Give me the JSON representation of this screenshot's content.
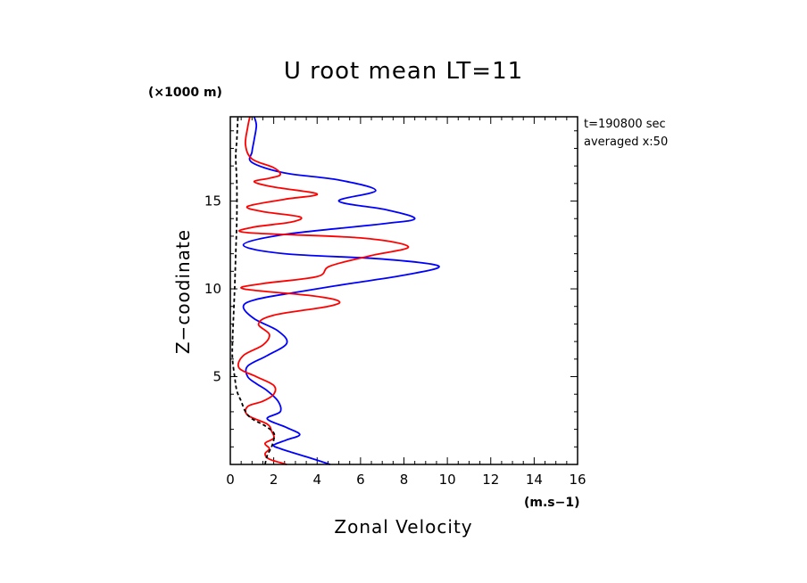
{
  "chart_data": {
    "type": "line",
    "title": "U root mean LT=11",
    "xlabel": "Zonal Velocity",
    "ylabel": "Z−coodinate",
    "x_unit": "(m.s−1)",
    "y_unit": "(×1000 m)",
    "annotation": [
      "t=190800 sec",
      "averaged  x:50"
    ],
    "xlim": [
      0,
      16
    ],
    "ylim": [
      0,
      19.8
    ],
    "x_ticks": [
      0,
      2,
      4,
      6,
      8,
      10,
      12,
      14,
      16
    ],
    "y_ticks": [
      5,
      10,
      15
    ],
    "grid": false,
    "series": [
      {
        "color": "#0000ff",
        "dash": "solid",
        "points": [
          [
            4.6,
            0.0
          ],
          [
            3.6,
            0.4
          ],
          [
            2.8,
            0.7
          ],
          [
            2.3,
            0.9
          ],
          [
            2.0,
            1.1
          ],
          [
            2.6,
            1.4
          ],
          [
            3.2,
            1.7
          ],
          [
            2.6,
            2.1
          ],
          [
            1.7,
            2.6
          ],
          [
            2.3,
            3.0
          ],
          [
            2.2,
            3.6
          ],
          [
            1.7,
            4.2
          ],
          [
            1.2,
            4.6
          ],
          [
            0.8,
            5.0
          ],
          [
            0.8,
            5.6
          ],
          [
            1.7,
            6.2
          ],
          [
            2.6,
            6.9
          ],
          [
            2.2,
            7.6
          ],
          [
            1.1,
            8.3
          ],
          [
            0.6,
            9.0
          ],
          [
            1.2,
            9.4
          ],
          [
            3.0,
            9.8
          ],
          [
            5.5,
            10.3
          ],
          [
            8.1,
            10.8
          ],
          [
            9.6,
            11.3
          ],
          [
            7.0,
            11.7
          ],
          [
            2.5,
            12.0
          ],
          [
            0.6,
            12.5
          ],
          [
            2.5,
            13.1
          ],
          [
            7.0,
            13.7
          ],
          [
            8.5,
            14.0
          ],
          [
            7.2,
            14.5
          ],
          [
            5.0,
            15.0
          ],
          [
            6.7,
            15.6
          ],
          [
            5.0,
            16.2
          ],
          [
            2.5,
            16.6
          ],
          [
            1.0,
            17.2
          ],
          [
            1.0,
            17.8
          ],
          [
            1.1,
            18.5
          ],
          [
            1.2,
            19.3
          ],
          [
            1.1,
            19.8
          ]
        ]
      },
      {
        "color": "#ff0000",
        "dash": "solid",
        "points": [
          [
            2.6,
            0.0
          ],
          [
            1.8,
            0.3
          ],
          [
            1.6,
            0.6
          ],
          [
            1.8,
            0.9
          ],
          [
            1.6,
            1.2
          ],
          [
            2.0,
            1.5
          ],
          [
            1.9,
            1.9
          ],
          [
            1.7,
            2.3
          ],
          [
            0.8,
            2.8
          ],
          [
            0.8,
            3.3
          ],
          [
            1.5,
            3.6
          ],
          [
            2.0,
            4.0
          ],
          [
            2.0,
            4.5
          ],
          [
            1.2,
            5.0
          ],
          [
            0.4,
            5.5
          ],
          [
            0.6,
            6.2
          ],
          [
            1.5,
            6.8
          ],
          [
            1.8,
            7.4
          ],
          [
            1.3,
            8.0
          ],
          [
            2.0,
            8.5
          ],
          [
            4.5,
            9.0
          ],
          [
            5.0,
            9.3
          ],
          [
            3.8,
            9.6
          ],
          [
            0.6,
            10.0
          ],
          [
            1.5,
            10.3
          ],
          [
            4.0,
            10.7
          ],
          [
            4.6,
            11.3
          ],
          [
            6.5,
            11.9
          ],
          [
            8.2,
            12.4
          ],
          [
            6.0,
            12.9
          ],
          [
            0.8,
            13.2
          ],
          [
            1.0,
            13.5
          ],
          [
            2.8,
            13.8
          ],
          [
            3.2,
            14.1
          ],
          [
            1.5,
            14.4
          ],
          [
            0.8,
            14.7
          ],
          [
            2.5,
            15.1
          ],
          [
            4.0,
            15.4
          ],
          [
            2.0,
            15.8
          ],
          [
            1.1,
            16.1
          ],
          [
            1.8,
            16.3
          ],
          [
            2.3,
            16.5
          ],
          [
            2.0,
            16.9
          ],
          [
            1.0,
            17.4
          ],
          [
            0.7,
            18.2
          ],
          [
            0.8,
            19.2
          ],
          [
            0.9,
            19.8
          ]
        ]
      },
      {
        "color": "#000000",
        "dash": "dashed",
        "points": [
          [
            1.6,
            0.0
          ],
          [
            1.7,
            0.5
          ],
          [
            1.9,
            1.0
          ],
          [
            2.0,
            1.4
          ],
          [
            2.0,
            1.8
          ],
          [
            1.6,
            2.2
          ],
          [
            1.0,
            2.6
          ],
          [
            0.7,
            3.0
          ],
          [
            0.5,
            3.6
          ],
          [
            0.3,
            4.2
          ],
          [
            0.2,
            5.0
          ],
          [
            0.1,
            6.0
          ],
          [
            0.1,
            7.0
          ],
          [
            0.15,
            8.5
          ],
          [
            0.2,
            10.0
          ],
          [
            0.25,
            12.0
          ],
          [
            0.3,
            14.0
          ],
          [
            0.3,
            16.0
          ],
          [
            0.25,
            17.5
          ],
          [
            0.3,
            18.5
          ],
          [
            0.35,
            19.8
          ]
        ]
      }
    ]
  }
}
